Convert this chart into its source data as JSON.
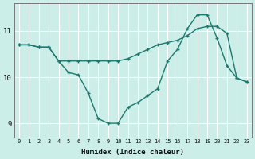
{
  "xlabel": "Humidex (Indice chaleur)",
  "bg_color": "#cceee8",
  "grid_color": "#ffffff",
  "line_color": "#1a7a6e",
  "x": [
    0,
    1,
    2,
    3,
    4,
    5,
    6,
    7,
    8,
    9,
    10,
    11,
    12,
    13,
    14,
    15,
    16,
    17,
    18,
    19,
    20,
    21,
    22,
    23
  ],
  "line1": [
    10.7,
    10.7,
    10.65,
    10.65,
    10.35,
    10.1,
    10.05,
    9.65,
    9.1,
    9.0,
    9.0,
    9.35,
    9.45,
    9.6,
    9.75,
    10.35,
    10.6,
    11.05,
    11.35,
    11.35,
    10.85,
    10.25,
    9.98,
    9.9
  ],
  "line2": [
    10.7,
    10.7,
    10.65,
    10.65,
    10.35,
    10.35,
    10.35,
    10.35,
    10.35,
    10.35,
    10.35,
    10.4,
    10.5,
    10.6,
    10.7,
    10.75,
    10.8,
    10.9,
    11.05,
    11.1,
    11.1,
    10.95,
    9.98,
    9.9
  ],
  "ylim": [
    8.7,
    11.6
  ],
  "yticks": [
    9,
    10,
    11
  ],
  "xlim": [
    -0.5,
    23.5
  ],
  "figsize": [
    3.2,
    2.0
  ],
  "dpi": 100
}
